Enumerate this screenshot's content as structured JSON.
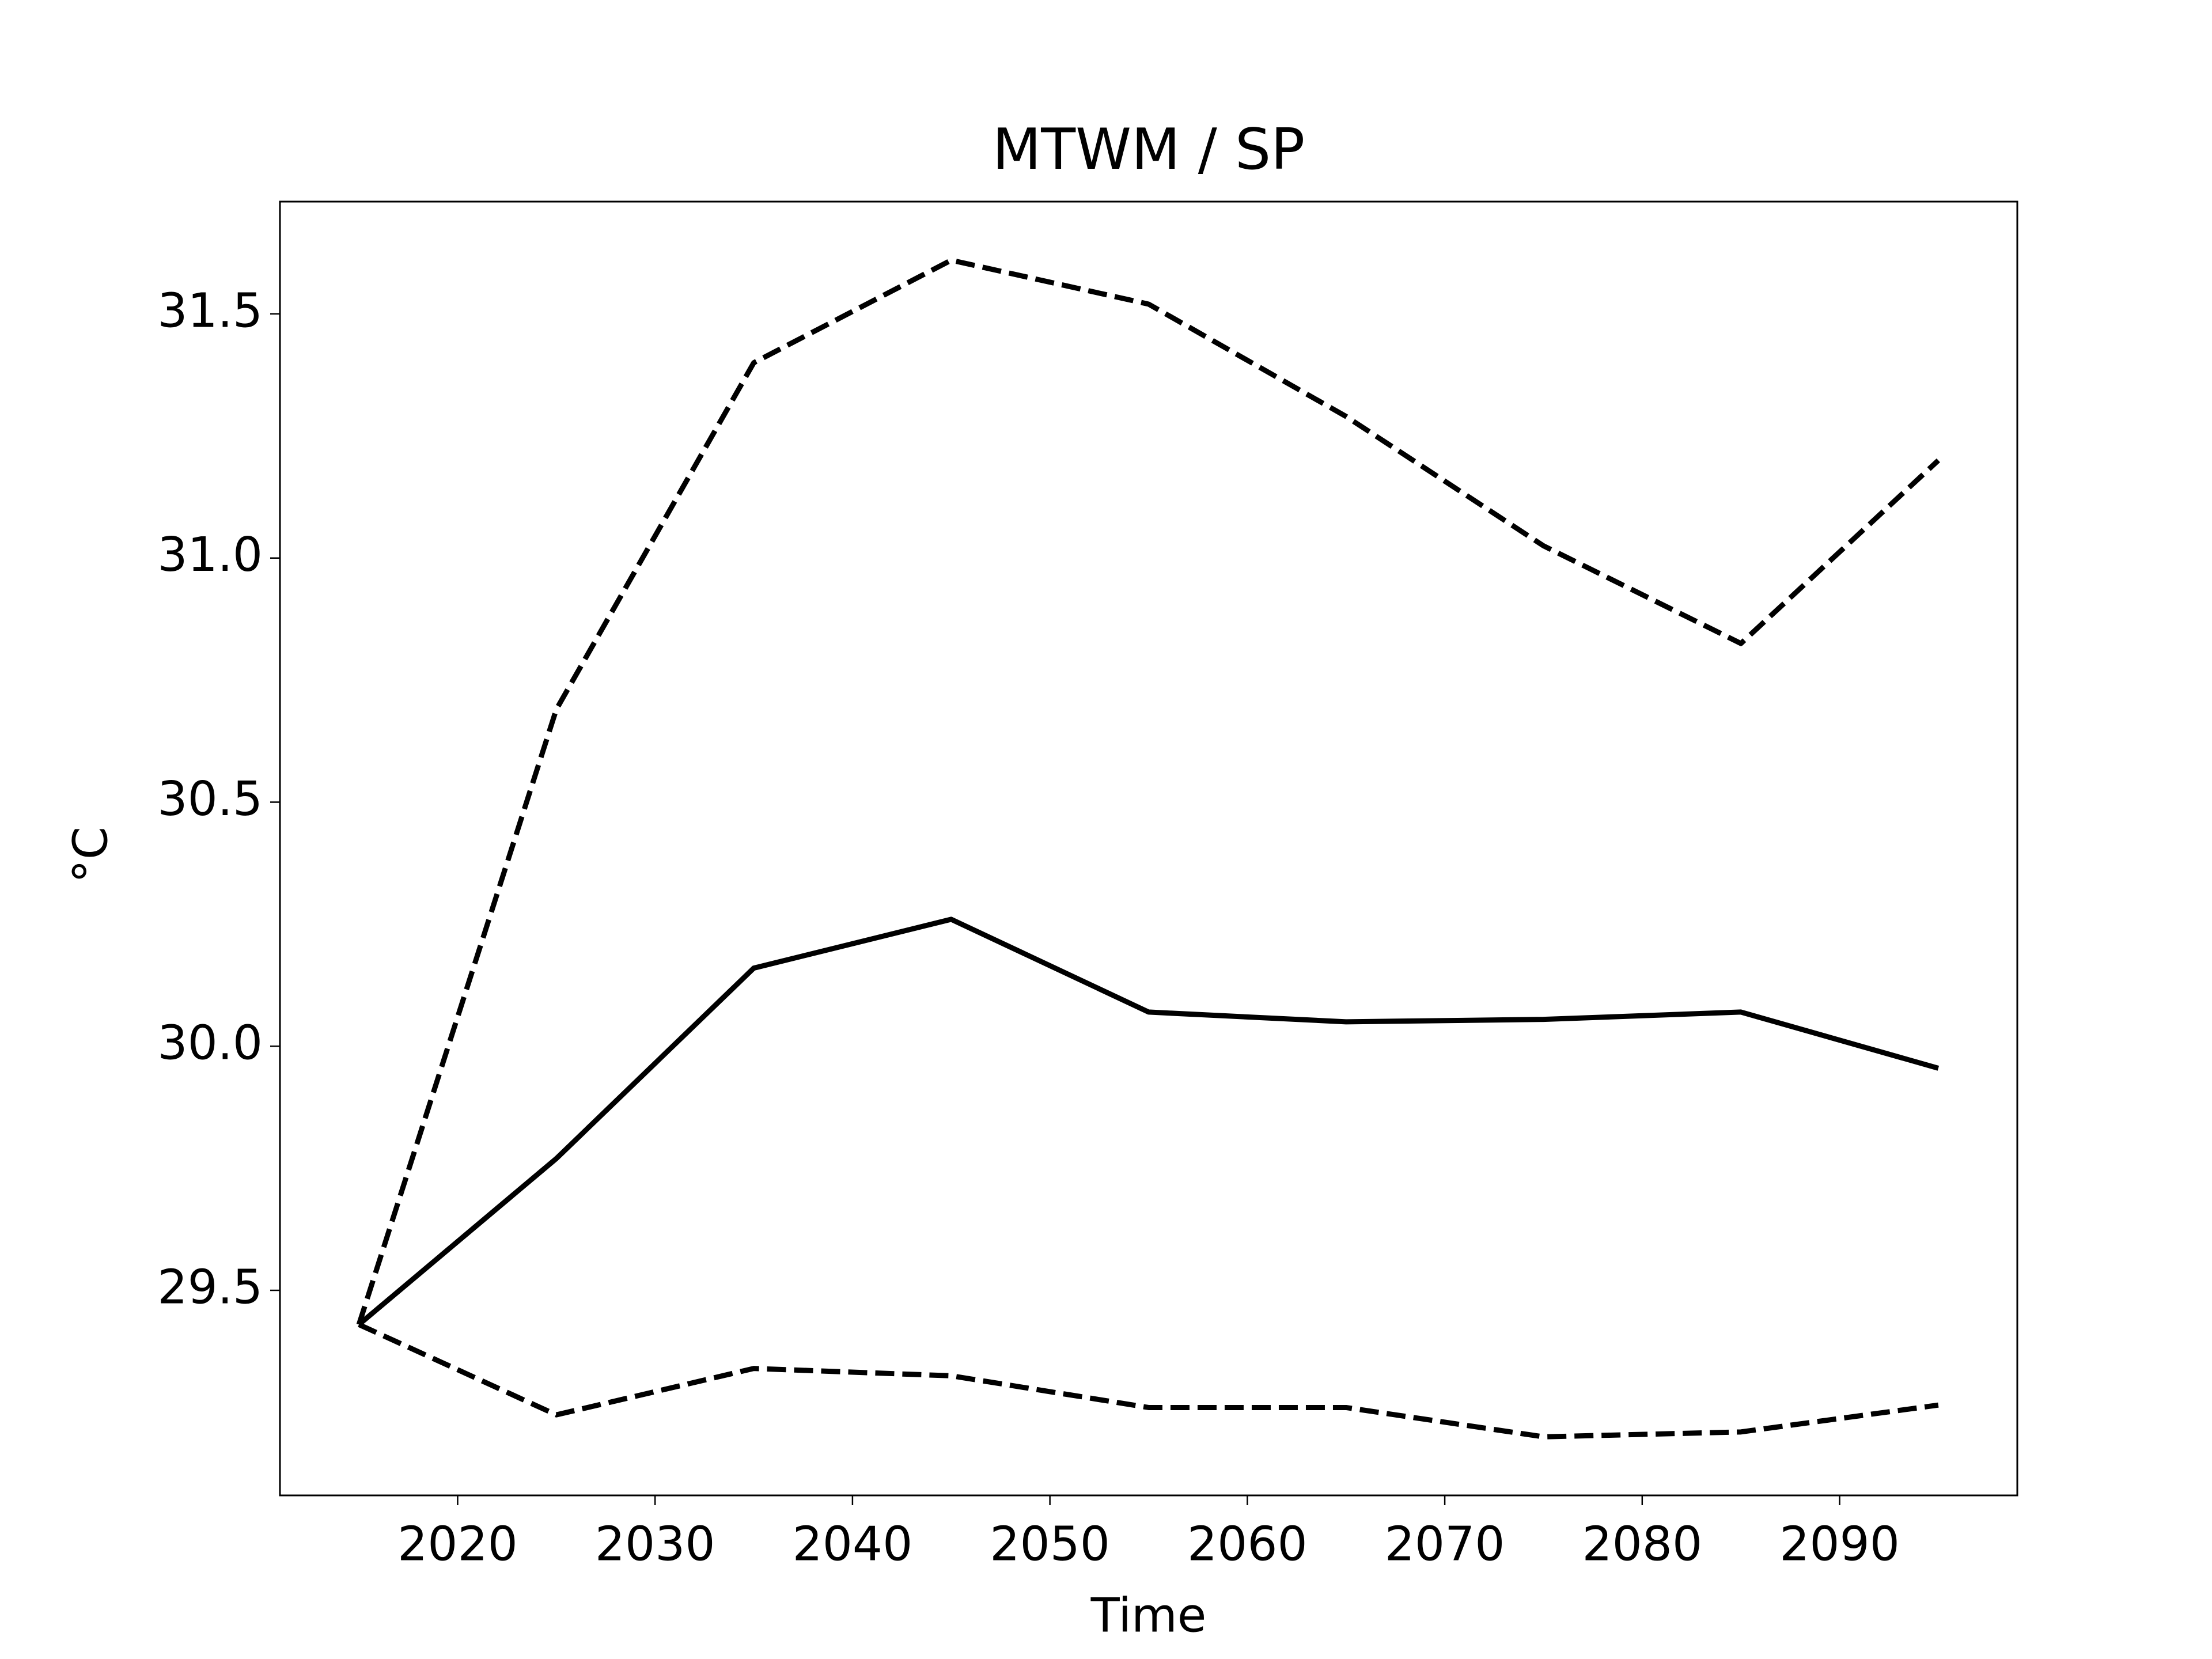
{
  "chart_data": {
    "type": "line",
    "title": "MTWM / SP",
    "x_label": "Time",
    "y_label": "°C",
    "x": [
      2015,
      2025,
      2035,
      2045,
      2055,
      2065,
      2075,
      2085,
      2095
    ],
    "series": [
      {
        "color": "#000000",
        "linestyle": "solid",
        "values": [
          29.43,
          29.77,
          30.16,
          30.26,
          30.07,
          30.05,
          30.055,
          30.07,
          29.955
        ]
      },
      {
        "color": "#000000",
        "linestyle": "dashed",
        "values": [
          29.43,
          30.69,
          31.4,
          31.61,
          31.52,
          31.29,
          31.025,
          30.825,
          31.2
        ]
      },
      {
        "color": "#000000",
        "linestyle": "dashed",
        "values": [
          29.43,
          29.245,
          29.34,
          29.325,
          29.26,
          29.26,
          29.2,
          29.21,
          29.265
        ]
      }
    ],
    "xlim": [
      2011,
      2099
    ],
    "xticks": [
      2020,
      2030,
      2040,
      2050,
      2060,
      2070,
      2080,
      2090
    ],
    "ylim": [
      29.08,
      31.73
    ],
    "yticks": [
      29.5,
      {
        "value": 30,
        "label": "30.0"
      },
      30.5,
      {
        "value": 31,
        "label": "31.0"
      },
      31.5
    ],
    "grid": false
  }
}
